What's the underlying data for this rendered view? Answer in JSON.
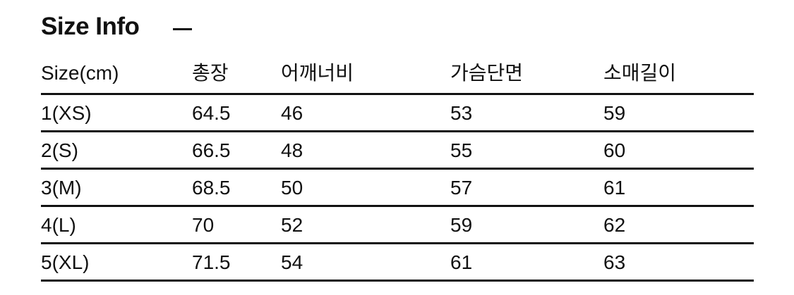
{
  "title": "Size Info",
  "headers": [
    "Size(cm)",
    "총장",
    "어깨너비",
    "가슴단면",
    "소매길이"
  ],
  "rows": [
    [
      "1(XS)",
      "64.5",
      "46",
      "53",
      "59"
    ],
    [
      "2(S)",
      "66.5",
      "48",
      "55",
      "60"
    ],
    [
      "3(M)",
      "68.5",
      "50",
      "57",
      "61"
    ],
    [
      "4(L)",
      "70",
      "52",
      "59",
      "62"
    ],
    [
      "5(XL)",
      "71.5",
      "54",
      "61",
      "63"
    ]
  ]
}
